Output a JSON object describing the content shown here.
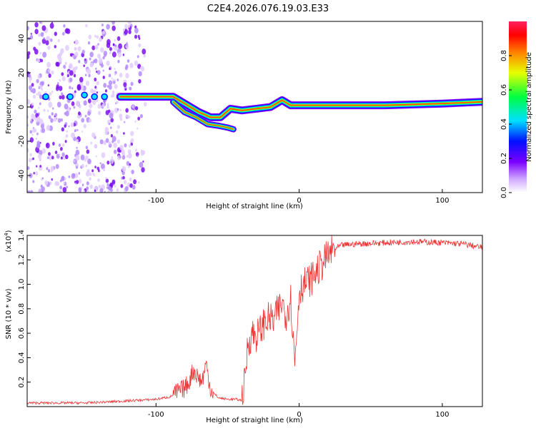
{
  "title": "C2E4.2026.076.19.03.E33",
  "chart_data": [
    {
      "type": "heatmap",
      "name": "spectrogram",
      "xlabel": "Height of straight line (km)",
      "ylabel": "Frequency (Hz)",
      "xlim": [
        -190,
        128
      ],
      "ylim": [
        -50,
        50
      ],
      "xticks": [
        -100,
        0,
        100
      ],
      "yticks": [
        -40,
        -20,
        0,
        20,
        40
      ],
      "xtick_labels": [
        "-100",
        "0",
        "100"
      ],
      "ytick_labels": [
        "-40",
        "-20",
        "0",
        "20",
        "40"
      ],
      "colorbar": {
        "label": "Normalized spectral amplitude",
        "range": [
          0,
          1
        ],
        "ticks": [
          0,
          0.2,
          0.4,
          0.6,
          0.8
        ],
        "tick_labels": [
          "0.0",
          "0.2",
          "0.4",
          "0.6",
          "0.8"
        ],
        "colors": [
          "#ffffff",
          "#d0a8ff",
          "#7a00ff",
          "#0010ff",
          "#00e0ff",
          "#00ff40",
          "#e8ff00",
          "#ff8000",
          "#ff0000",
          "#ff2060"
        ]
      },
      "noise_region_x": [
        -190,
        -105
      ],
      "ridges": [
        {
          "name": "upper branch",
          "x": [
            -125,
            -115,
            -100,
            -88,
            -78,
            -70,
            -62,
            -55,
            -48,
            -40,
            -30,
            -20,
            -12,
            -6,
            0,
            10,
            30,
            60,
            100,
            128
          ],
          "y": [
            6,
            6,
            6,
            6,
            1,
            -3,
            -6,
            -6,
            -1,
            -2,
            -1,
            0,
            4,
            1,
            1,
            1,
            1,
            1,
            2,
            3
          ]
        },
        {
          "name": "lower branch",
          "x": [
            -88,
            -80,
            -72,
            -64,
            -56,
            -50,
            -46
          ],
          "y": [
            3,
            -3,
            -6,
            -10,
            -11,
            -12,
            -13
          ]
        }
      ]
    },
    {
      "type": "line",
      "name": "snr",
      "xlabel": "Height of straight line (km)",
      "ylabel": "SNR (10 * v/v)",
      "scale_label": "(x10",
      "scale_exponent": "4",
      "xlim": [
        -190,
        128
      ],
      "ylim": [
        0,
        1.4
      ],
      "xticks": [
        -100,
        0,
        100
      ],
      "xtick_labels": [
        "-100",
        "0",
        "100"
      ],
      "yticks": [
        0.2,
        0.4,
        0.6,
        0.8,
        1.0,
        1.2,
        1.4
      ],
      "ytick_labels": [
        "0.2",
        "0.4",
        "0.6",
        "0.8",
        "1.0",
        "1.2",
        "1.4"
      ],
      "series": [
        {
          "name": "SNR",
          "color": "#ee3333",
          "x": [
            -190,
            -170,
            -150,
            -130,
            -115,
            -100,
            -90,
            -85,
            -80,
            -77,
            -74,
            -71,
            -68,
            -65,
            -62,
            -59,
            -56,
            -50,
            -44,
            -40,
            -38,
            -36,
            -33,
            -30,
            -27,
            -24,
            -21,
            -18,
            -15,
            -12,
            -9,
            -6,
            -3,
            0,
            3,
            6,
            9,
            12,
            15,
            18,
            21,
            24,
            27,
            30,
            40,
            60,
            80,
            100,
            115,
            128
          ],
          "y": [
            0.03,
            0.03,
            0.03,
            0.04,
            0.05,
            0.06,
            0.08,
            0.12,
            0.15,
            0.2,
            0.3,
            0.25,
            0.2,
            0.35,
            0.15,
            0.1,
            0.07,
            0.06,
            0.06,
            0.05,
            0.2,
            0.5,
            0.6,
            0.58,
            0.62,
            0.7,
            0.72,
            0.7,
            0.78,
            0.85,
            0.75,
            0.9,
            0.35,
            0.95,
            1.0,
            1.02,
            1.05,
            1.1,
            1.15,
            1.2,
            1.25,
            1.28,
            1.3,
            1.32,
            1.33,
            1.34,
            1.35,
            1.34,
            1.33,
            1.3
          ]
        }
      ]
    }
  ]
}
